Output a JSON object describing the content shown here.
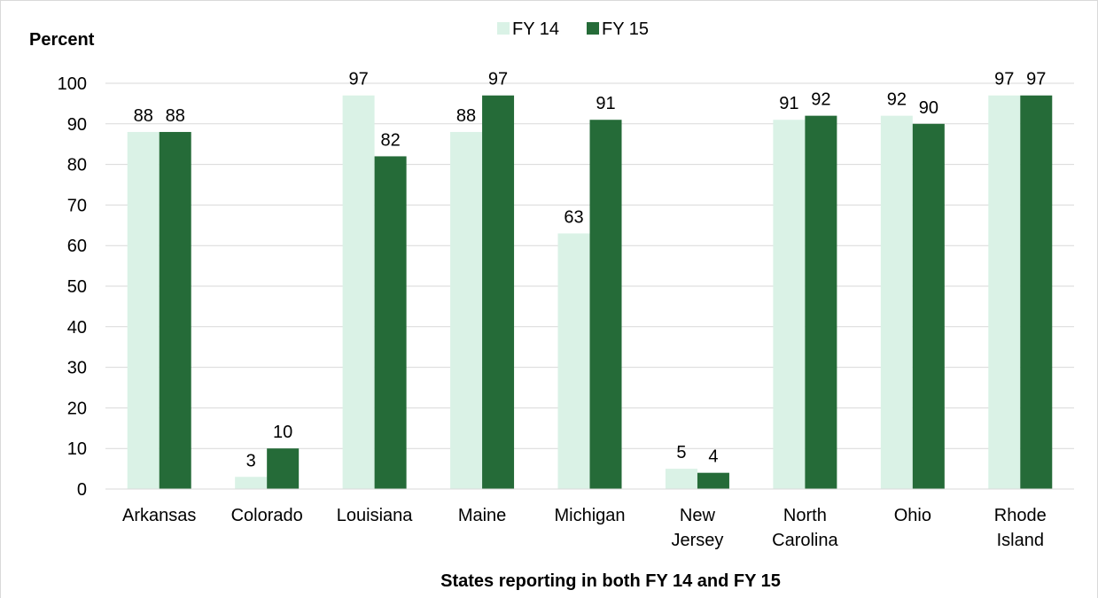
{
  "chart_data": {
    "type": "bar",
    "ylabel": "Percent",
    "xlabel": "States reporting in both FY 14 and FY 15",
    "ylim": [
      0,
      100
    ],
    "ytick_step": 10,
    "grid": true,
    "legend_position": "top-center",
    "categories": [
      [
        "Arkansas"
      ],
      [
        "Colorado"
      ],
      [
        "Louisiana"
      ],
      [
        "Maine"
      ],
      [
        "Michigan"
      ],
      [
        "New",
        "Jersey"
      ],
      [
        "North",
        "Carolina"
      ],
      [
        "Ohio"
      ],
      [
        "Rhode",
        "Island"
      ]
    ],
    "series": [
      {
        "name": "FY 14",
        "color": "#daf2e6",
        "values": [
          88,
          3,
          97,
          88,
          63,
          5,
          91,
          92,
          97
        ]
      },
      {
        "name": "FY 15",
        "color": "#256b38",
        "values": [
          88,
          10,
          82,
          97,
          91,
          4,
          92,
          90,
          97
        ]
      }
    ]
  }
}
